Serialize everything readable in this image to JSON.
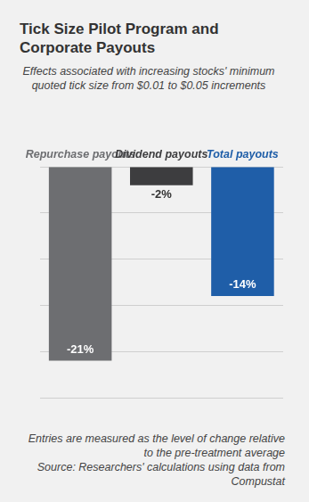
{
  "chart_data": {
    "type": "bar",
    "title": "Tick Size Pilot Program and Corporate Payouts",
    "subtitle": "Effects associated with increasing stocks' minimum quoted tick size from $0.01 to $0.05 increments",
    "categories": [
      "Repurchase payouts",
      "Dividend payouts",
      "Total payouts"
    ],
    "values": [
      -21,
      -2,
      -14
    ],
    "value_labels": [
      "-21%",
      "-2%",
      "-14%"
    ],
    "colors": [
      "#6d6e71",
      "#3d3d3f",
      "#1f5ea8"
    ],
    "ylim": [
      -25,
      0
    ],
    "yticks": [
      -25,
      -20,
      -15,
      -10,
      -5,
      0
    ],
    "grid": true,
    "data_labels": true,
    "tick_labels": "x",
    "annotations": [
      "Entries are measured as the level of change relative to the pre-treatment average",
      "Source: Researchers' calculations using data from Compustat"
    ]
  }
}
